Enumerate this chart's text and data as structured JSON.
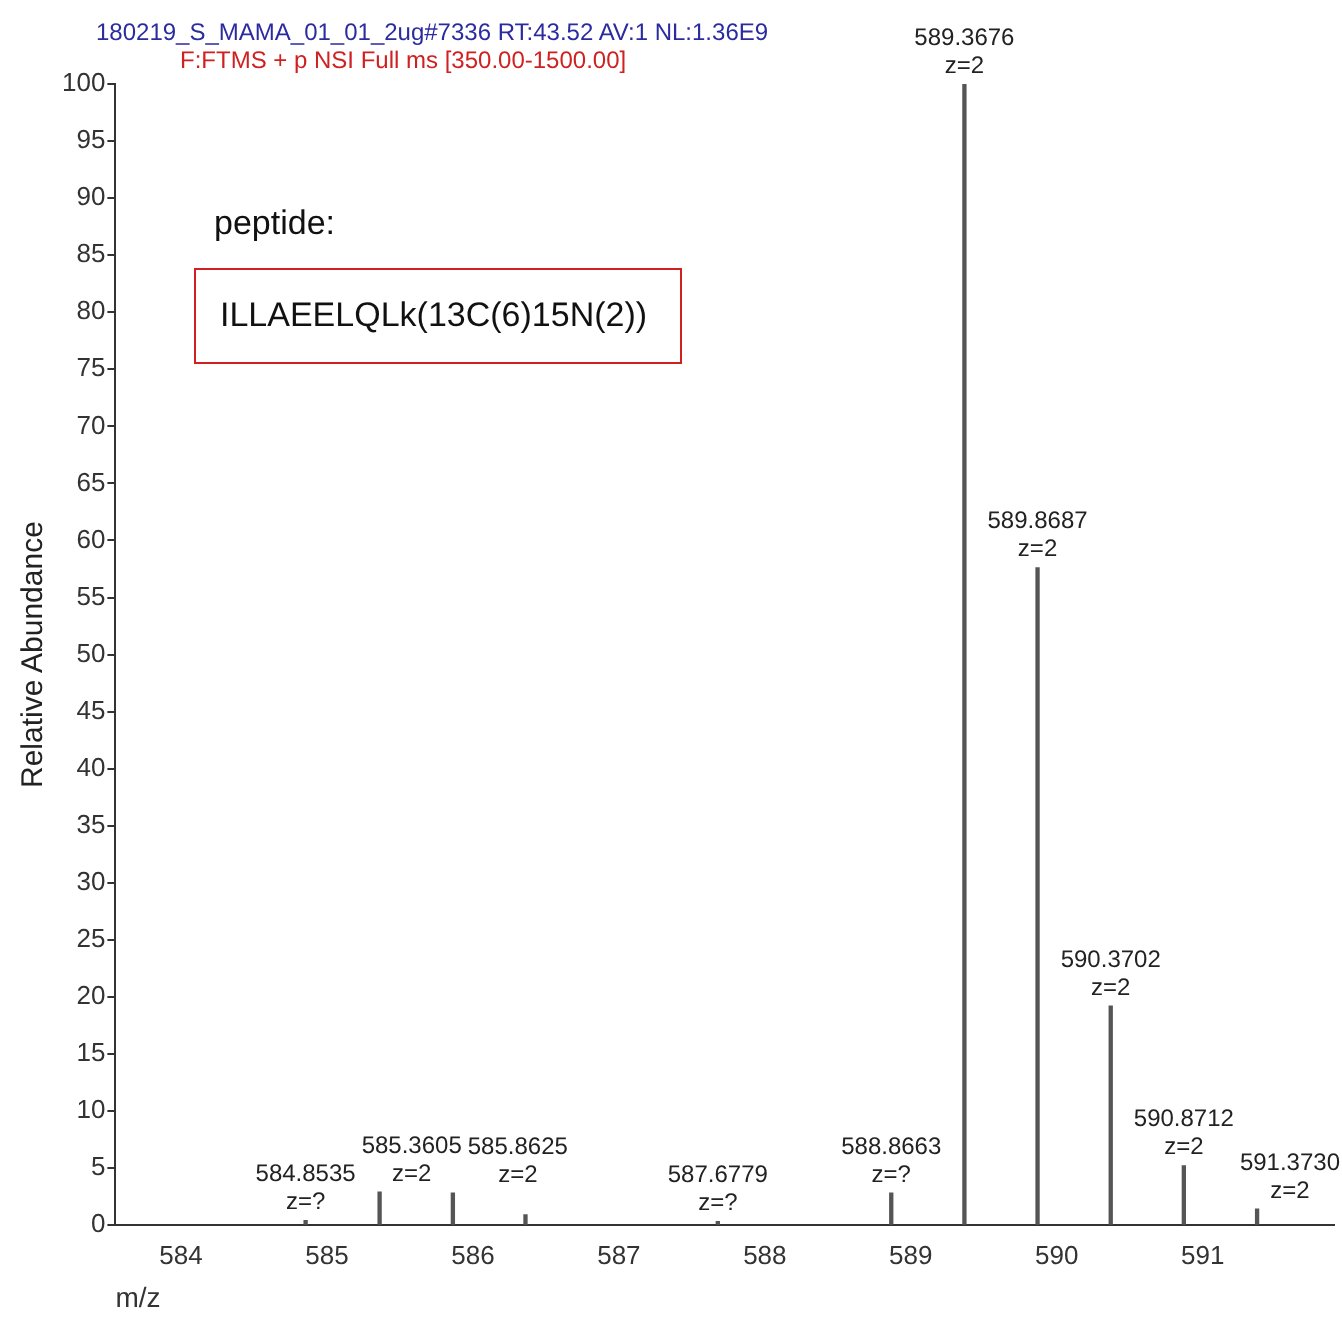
{
  "chart_data": {
    "type": "bar",
    "title": "180219_S_MAMA_01_01_2ug#7336 RT:43.52 AV:1 NL:1.36E9",
    "subtitle": "F:FTMS + p NSI Full ms [350.00-1500.00]",
    "xlabel": "m/z",
    "ylabel": "Relative Abundance",
    "annotations": [
      "peptide:",
      "ILLAEELQLk(13C(6)15N(2))",
      {
        "text": "584.8535\nz=?",
        "x": 584.8535,
        "y": 0.4
      },
      {
        "text": "585.3605\nz=2",
        "x": 585.3605,
        "y": 2.9
      },
      {
        "text": "585.8625\nz=2",
        "x": 585.8625,
        "y": 2.8
      },
      {
        "text": "587.6779\nz=?",
        "x": 587.6779,
        "y": 0.3
      },
      {
        "text": "588.8663\nz=?",
        "x": 588.8663,
        "y": 2.8
      },
      {
        "text": "589.3676\nz=2",
        "x": 589.3676,
        "y": 100
      },
      {
        "text": "589.8687\nz=2",
        "x": 589.8687,
        "y": 57.6
      },
      {
        "text": "590.3702\nz=2",
        "x": 590.3702,
        "y": 19.2
      },
      {
        "text": "590.8712\nz=2",
        "x": 590.8712,
        "y": 5.2
      },
      {
        "text": "591.3730\nz=2",
        "x": 591.373,
        "y": 1.4
      }
    ],
    "x": [
      584.8535,
      585.3605,
      585.8625,
      586.36,
      587.6779,
      588.8663,
      589.3676,
      589.8687,
      590.3702,
      590.8712,
      591.373
    ],
    "values": [
      0.4,
      2.9,
      2.8,
      0.9,
      0.3,
      2.8,
      100,
      57.6,
      19.2,
      5.2,
      1.4
    ],
    "color": "#555555",
    "xlim": [
      583.55,
      591.9
    ],
    "xticks": [
      584,
      585,
      586,
      587,
      588,
      589,
      590,
      591
    ],
    "ylim": [
      0,
      100
    ],
    "yticks": [
      0,
      5,
      10,
      15,
      20,
      25,
      30,
      35,
      40,
      45,
      50,
      55,
      60,
      65,
      70,
      75,
      80,
      85,
      90,
      95,
      100
    ],
    "grid": false,
    "legend": false
  }
}
